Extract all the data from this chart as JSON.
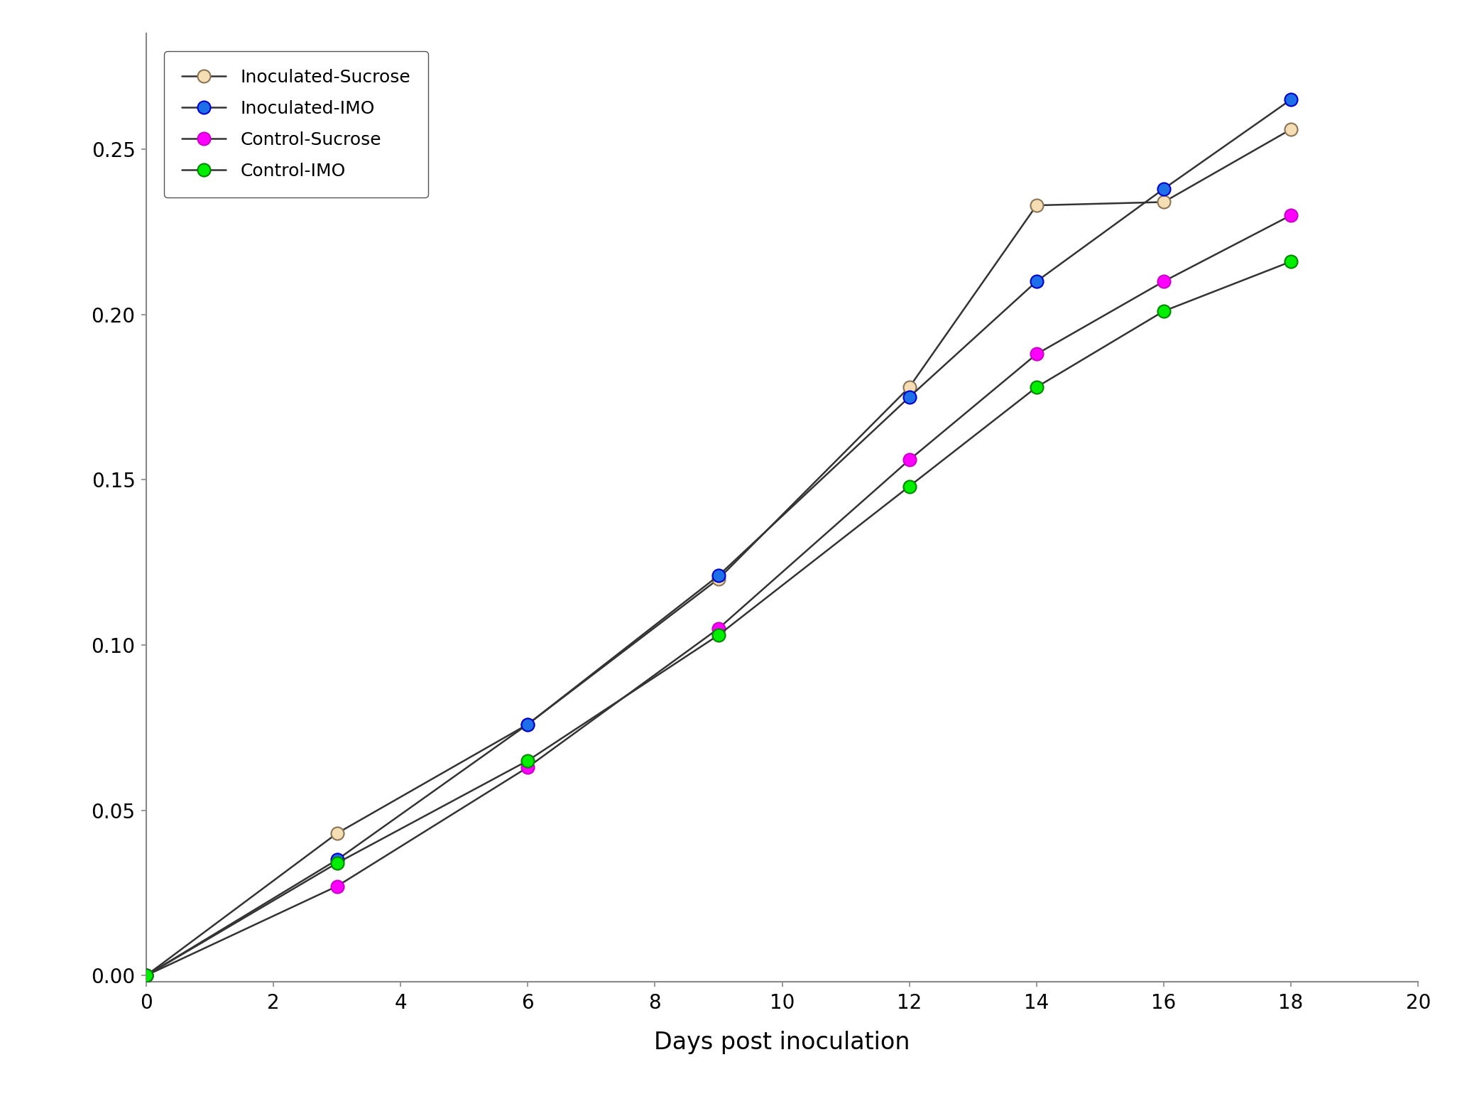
{
  "series": [
    {
      "label": "Inoculated-Sucrose",
      "markerfacecolor": "#F5DEB3",
      "markeredgecolor": "#8B7355",
      "x": [
        0,
        3,
        6,
        9,
        12,
        14,
        16,
        18
      ],
      "y": [
        0.0,
        0.043,
        0.076,
        0.12,
        0.178,
        0.233,
        0.234,
        0.256
      ]
    },
    {
      "label": "Inoculated-IMO",
      "markerfacecolor": "#1E6FE8",
      "markeredgecolor": "#0000CD",
      "x": [
        0,
        3,
        6,
        9,
        12,
        14,
        16,
        18
      ],
      "y": [
        0.0,
        0.035,
        0.076,
        0.121,
        0.175,
        0.21,
        0.238,
        0.265
      ]
    },
    {
      "label": "Control-Sucrose",
      "markerfacecolor": "#FF00FF",
      "markeredgecolor": "#CC00CC",
      "x": [
        0,
        3,
        6,
        9,
        12,
        14,
        16,
        18
      ],
      "y": [
        0.0,
        0.027,
        0.063,
        0.105,
        0.156,
        0.188,
        0.21,
        0.23
      ]
    },
    {
      "label": "Control-IMO",
      "markerfacecolor": "#00EE00",
      "markeredgecolor": "#008800",
      "x": [
        0,
        3,
        6,
        9,
        12,
        14,
        16,
        18
      ],
      "y": [
        0.0,
        0.034,
        0.065,
        0.103,
        0.148,
        0.178,
        0.201,
        0.216
      ]
    }
  ],
  "xlabel": "Days post inoculation",
  "xlim": [
    0,
    20
  ],
  "ylim": [
    -0.002,
    0.285
  ],
  "xticks": [
    0,
    2,
    4,
    6,
    8,
    10,
    12,
    14,
    16,
    18,
    20
  ],
  "yticks": [
    0.0,
    0.05,
    0.1,
    0.15,
    0.2,
    0.25
  ],
  "linecolor": "#333333",
  "linewidth": 1.8,
  "markersize": 13,
  "markeredgewidth": 1.5,
  "legend_loc": "upper left",
  "xlabel_fontsize": 24,
  "tick_fontsize": 20,
  "legend_fontsize": 18,
  "background_color": "#ffffff",
  "spine_color": "#888888",
  "spine_linewidth": 1.5
}
